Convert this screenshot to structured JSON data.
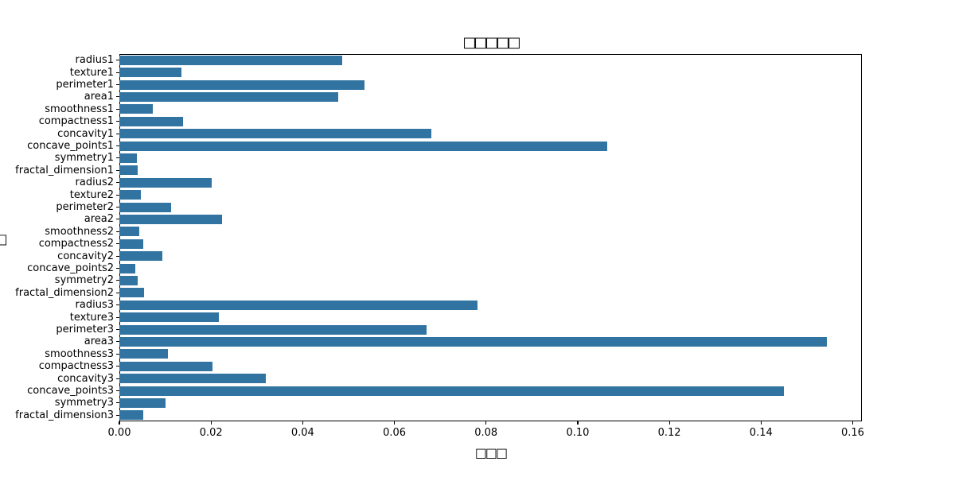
{
  "chart_data": {
    "type": "bar",
    "orientation": "horizontal",
    "title": "□□□□□",
    "xlabel": "□□□",
    "ylabel": "□",
    "bar_color": "#3274a1",
    "categories": [
      "radius1",
      "texture1",
      "perimeter1",
      "area1",
      "smoothness1",
      "compactness1",
      "concavity1",
      "concave_points1",
      "symmetry1",
      "fractal_dimension1",
      "radius2",
      "texture2",
      "perimeter2",
      "area2",
      "smoothness2",
      "compactness2",
      "concavity2",
      "concave_points2",
      "symmetry2",
      "fractal_dimension2",
      "radius3",
      "texture3",
      "perimeter3",
      "area3",
      "smoothness3",
      "compactness3",
      "concavity3",
      "concave_points3",
      "symmetry3",
      "fractal_dimension3"
    ],
    "values": [
      0.0487,
      0.0136,
      0.0534,
      0.0477,
      0.0073,
      0.0139,
      0.068,
      0.1064,
      0.0038,
      0.004,
      0.0202,
      0.0047,
      0.0113,
      0.0224,
      0.0043,
      0.0052,
      0.0094,
      0.0035,
      0.004,
      0.0053,
      0.0781,
      0.0217,
      0.0671,
      0.1543,
      0.0106,
      0.0204,
      0.0319,
      0.1449,
      0.0101,
      0.0052
    ],
    "xlim": [
      0,
      0.162
    ],
    "xtick_values": [
      0.0,
      0.02,
      0.04,
      0.06,
      0.08,
      0.1,
      0.12,
      0.14,
      0.16
    ],
    "xtick_labels": [
      "0.00",
      "0.02",
      "0.04",
      "0.06",
      "0.08",
      "0.10",
      "0.12",
      "0.14",
      "0.16"
    ],
    "grid": false,
    "legend": null
  }
}
